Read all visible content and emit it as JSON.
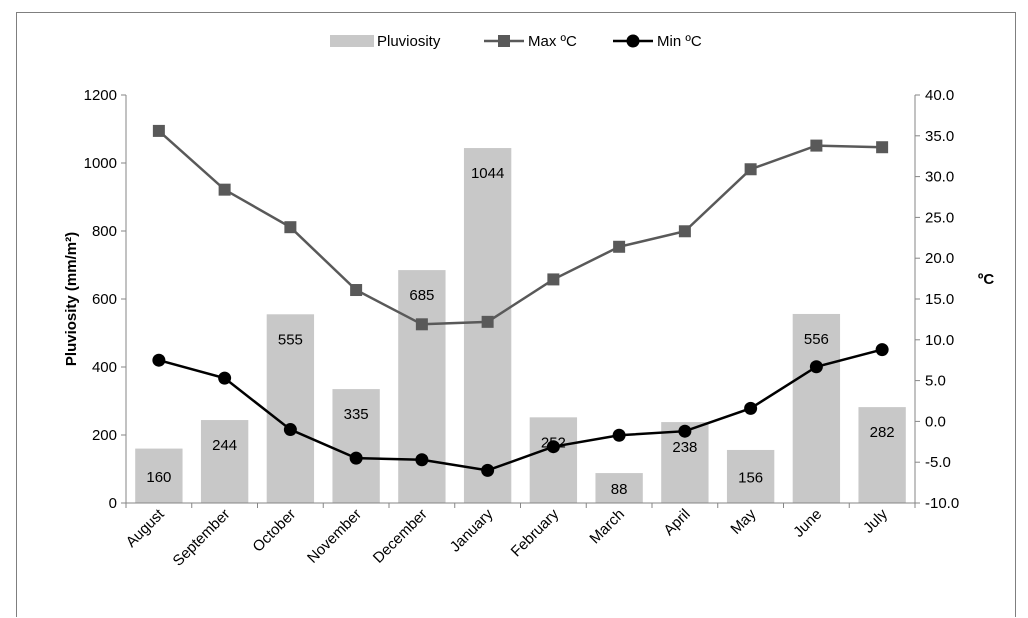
{
  "chart_data": {
    "type": "bar+line",
    "categories": [
      "August",
      "September",
      "October",
      "November",
      "December",
      "January",
      "February",
      "March",
      "April",
      "May",
      "June",
      "July"
    ],
    "series": [
      {
        "name": "Pluviosity",
        "kind": "bar",
        "axis": "left",
        "color": "#c8c8c8",
        "values": [
          160,
          244,
          555,
          335,
          685,
          1044,
          252,
          88,
          238,
          156,
          556,
          282
        ]
      },
      {
        "name": "Max ºC",
        "kind": "line",
        "axis": "right",
        "marker": "square",
        "color": "#595959",
        "values": [
          35.6,
          28.4,
          23.8,
          16.1,
          11.9,
          12.2,
          17.4,
          21.4,
          23.3,
          30.9,
          33.8,
          33.6
        ]
      },
      {
        "name": "Min ºC",
        "kind": "line",
        "axis": "right",
        "marker": "circle",
        "color": "#000000",
        "values": [
          7.5,
          5.3,
          -1.0,
          -4.5,
          -4.7,
          -6.0,
          -3.1,
          -1.7,
          -1.2,
          1.6,
          6.7,
          8.8
        ]
      }
    ],
    "ylabel_left": "Pluviosity (mm/m²)",
    "ylabel_right": "ºC",
    "ylim_left": [
      0,
      1200
    ],
    "yticks_left": [
      "0",
      "200",
      "400",
      "600",
      "800",
      "1000",
      "1200"
    ],
    "ylim_right": [
      -10,
      40
    ],
    "yticks_right": [
      "-10.0",
      "-5.0",
      "0.0",
      "5.0",
      "10.0",
      "15.0",
      "20.0",
      "25.0",
      "30.0",
      "35.0",
      "40.0"
    ],
    "legend_position": "top",
    "grid": false
  }
}
